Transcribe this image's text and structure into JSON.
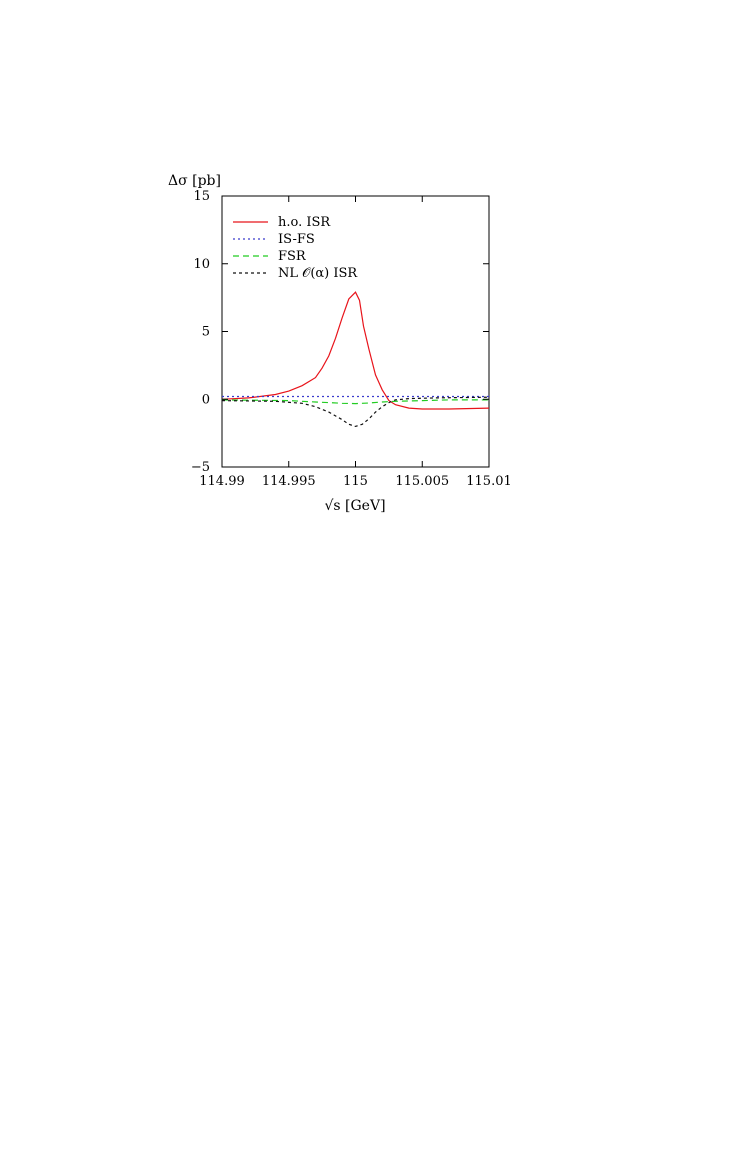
{
  "chart_data": {
    "type": "line",
    "title": "",
    "ylabel": "Δσ [pb]",
    "xlabel": "√s [GeV]",
    "xlim": [
      114.99,
      115.01
    ],
    "ylim": [
      -5,
      15
    ],
    "xticks": [
      114.99,
      114.995,
      115,
      115.005,
      115.01
    ],
    "xtick_labels": [
      "114.99",
      "114.995",
      "115",
      "115.005",
      "115.01"
    ],
    "yticks": [
      -5,
      0,
      5,
      10,
      15
    ],
    "ytick_labels": [
      "−5",
      "0",
      "5",
      "10",
      "15"
    ],
    "grid": false,
    "legend_position": "top-left",
    "series": [
      {
        "name": "h.o. ISR",
        "color": "#e8141b",
        "dash": "solid",
        "points": [
          [
            114.99,
            0.0
          ],
          [
            114.992,
            0.1
          ],
          [
            114.994,
            0.35
          ],
          [
            114.995,
            0.6
          ],
          [
            114.996,
            1.0
          ],
          [
            114.997,
            1.6
          ],
          [
            114.9975,
            2.3
          ],
          [
            114.998,
            3.2
          ],
          [
            114.9985,
            4.5
          ],
          [
            114.999,
            6.0
          ],
          [
            114.9995,
            7.4
          ],
          [
            115.0,
            7.9
          ],
          [
            115.0003,
            7.3
          ],
          [
            115.0006,
            5.4
          ],
          [
            115.001,
            3.7
          ],
          [
            115.0015,
            1.8
          ],
          [
            115.002,
            0.7
          ],
          [
            115.0025,
            -0.1
          ],
          [
            115.003,
            -0.4
          ],
          [
            115.004,
            -0.65
          ],
          [
            115.005,
            -0.72
          ],
          [
            115.007,
            -0.72
          ],
          [
            115.01,
            -0.65
          ]
        ]
      },
      {
        "name": "IS-FS",
        "color": "#3a3acc",
        "dash": "dotted",
        "points": [
          [
            114.99,
            0.2
          ],
          [
            114.995,
            0.2
          ],
          [
            115.0,
            0.2
          ],
          [
            115.005,
            0.2
          ],
          [
            115.01,
            0.2
          ]
        ]
      },
      {
        "name": "FSR",
        "color": "#22cc22",
        "dash": "dashed",
        "points": [
          [
            114.99,
            -0.05
          ],
          [
            114.995,
            -0.1
          ],
          [
            114.997,
            -0.2
          ],
          [
            114.998,
            -0.25
          ],
          [
            114.999,
            -0.3
          ],
          [
            115.0,
            -0.32
          ],
          [
            115.001,
            -0.28
          ],
          [
            115.002,
            -0.2
          ],
          [
            115.003,
            -0.15
          ],
          [
            115.005,
            -0.1
          ],
          [
            115.007,
            -0.05
          ],
          [
            115.01,
            -0.05
          ]
        ]
      },
      {
        "name": "NL 𝒪(α) ISR",
        "color": "#111111",
        "dash": "dashed-short",
        "points": [
          [
            114.99,
            -0.1
          ],
          [
            114.994,
            -0.15
          ],
          [
            114.996,
            -0.3
          ],
          [
            114.997,
            -0.55
          ],
          [
            114.998,
            -0.95
          ],
          [
            114.999,
            -1.5
          ],
          [
            114.9995,
            -1.85
          ],
          [
            115.0,
            -2.0
          ],
          [
            115.0005,
            -1.85
          ],
          [
            115.001,
            -1.45
          ],
          [
            115.0015,
            -0.95
          ],
          [
            115.002,
            -0.55
          ],
          [
            115.0025,
            -0.25
          ],
          [
            115.003,
            -0.05
          ],
          [
            115.004,
            0.05
          ],
          [
            115.006,
            0.1
          ],
          [
            115.01,
            0.15
          ]
        ]
      }
    ]
  }
}
